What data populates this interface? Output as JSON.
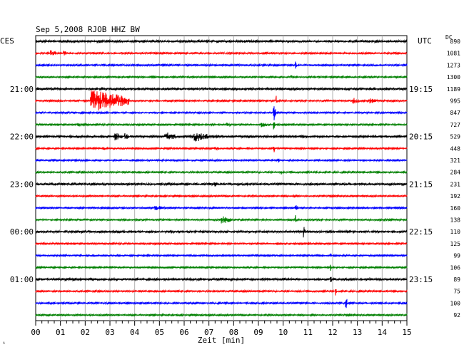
{
  "chart_data": {
    "type": "line",
    "title": "Sep 5,2008   RJOB HHZ BW",
    "left_header": "CES",
    "right_header": "UTC",
    "dc_header": "DC",
    "xlabel": "Zeit [min]",
    "xlim": [
      0,
      15
    ],
    "x_ticks": [
      "00",
      "01",
      "02",
      "03",
      "04",
      "05",
      "06",
      "07",
      "08",
      "09",
      "10",
      "11",
      "12",
      "13",
      "14",
      "15"
    ],
    "left_labels": [
      {
        "row": 4,
        "text": "21:00"
      },
      {
        "row": 8,
        "text": "22:00"
      },
      {
        "row": 12,
        "text": "23:00"
      },
      {
        "row": 16,
        "text": "00:00"
      },
      {
        "row": 20,
        "text": "01:00"
      }
    ],
    "right_labels": [
      {
        "row": 4,
        "text": "19:15"
      },
      {
        "row": 8,
        "text": "20:15"
      },
      {
        "row": 12,
        "text": "21:15"
      },
      {
        "row": 16,
        "text": "22:15"
      },
      {
        "row": 20,
        "text": "23:15"
      }
    ],
    "trace_colors": [
      "#000000",
      "#ff0000",
      "#0000ff",
      "#008000"
    ],
    "dc_values": [
      "890",
      "1081",
      "1273",
      "1300",
      "1189",
      "995",
      "847",
      "727",
      "529",
      "448",
      "321",
      "284",
      "231",
      "192",
      "160",
      "138",
      "110",
      "125",
      "99",
      "106",
      "89",
      "75",
      "100",
      "92"
    ],
    "events": [
      {
        "row": 0,
        "t": 11.3,
        "amp": 7,
        "dur": 0.05
      },
      {
        "row": 1,
        "t": 0.6,
        "amp": 5,
        "dur": 0.25
      },
      {
        "row": 1,
        "t": 1.1,
        "amp": 4,
        "dur": 0.2
      },
      {
        "row": 2,
        "t": 10.5,
        "amp": 8,
        "dur": 0.05
      },
      {
        "row": 3,
        "t": 10.3,
        "amp": 9,
        "dur": 0.05
      },
      {
        "row": 5,
        "t": 2.2,
        "amp": 16,
        "dur": 1.6
      },
      {
        "row": 5,
        "t": 9.7,
        "amp": 10,
        "dur": 0.05
      },
      {
        "row": 5,
        "t": 12.8,
        "amp": 5,
        "dur": 0.3
      },
      {
        "row": 5,
        "t": 13.5,
        "amp": 4,
        "dur": 0.3
      },
      {
        "row": 6,
        "t": 9.6,
        "amp": 14,
        "dur": 0.1
      },
      {
        "row": 7,
        "t": 1.7,
        "amp": 3,
        "dur": 0.4
      },
      {
        "row": 7,
        "t": 7.7,
        "amp": 3,
        "dur": 0.3
      },
      {
        "row": 7,
        "t": 9.1,
        "amp": 4,
        "dur": 0.3
      },
      {
        "row": 7,
        "t": 9.6,
        "amp": 10,
        "dur": 0.1
      },
      {
        "row": 8,
        "t": 3.2,
        "amp": 6,
        "dur": 0.3
      },
      {
        "row": 8,
        "t": 3.6,
        "amp": 5,
        "dur": 0.2
      },
      {
        "row": 8,
        "t": 5.2,
        "amp": 7,
        "dur": 0.5
      },
      {
        "row": 8,
        "t": 6.4,
        "amp": 8,
        "dur": 0.6
      },
      {
        "row": 8,
        "t": 9.5,
        "amp": 6,
        "dur": 0.05
      },
      {
        "row": 9,
        "t": 2.7,
        "amp": 3,
        "dur": 0.2
      },
      {
        "row": 9,
        "t": 7.2,
        "amp": 4,
        "dur": 0.2
      },
      {
        "row": 9,
        "t": 9.6,
        "amp": 12,
        "dur": 0.05
      },
      {
        "row": 10,
        "t": 9.8,
        "amp": 5,
        "dur": 0.05
      },
      {
        "row": 11,
        "t": 9.9,
        "amp": 5,
        "dur": 0.05
      },
      {
        "row": 12,
        "t": 7.2,
        "amp": 4,
        "dur": 0.2
      },
      {
        "row": 13,
        "t": 10.4,
        "amp": 5,
        "dur": 0.05
      },
      {
        "row": 14,
        "t": 4.8,
        "amp": 4,
        "dur": 0.4
      },
      {
        "row": 14,
        "t": 10.5,
        "amp": 6,
        "dur": 0.1
      },
      {
        "row": 15,
        "t": 7.5,
        "amp": 6,
        "dur": 0.4
      },
      {
        "row": 15,
        "t": 10.5,
        "amp": 9,
        "dur": 0.05
      },
      {
        "row": 16,
        "t": 10.8,
        "amp": 10,
        "dur": 0.1
      },
      {
        "row": 17,
        "t": 11.0,
        "amp": 4,
        "dur": 0.05
      },
      {
        "row": 18,
        "t": 11.9,
        "amp": 5,
        "dur": 0.05
      },
      {
        "row": 19,
        "t": 11.9,
        "amp": 6,
        "dur": 0.05
      },
      {
        "row": 20,
        "t": 11.9,
        "amp": 8,
        "dur": 0.05
      },
      {
        "row": 21,
        "t": 12.1,
        "amp": 8,
        "dur": 0.05
      },
      {
        "row": 22,
        "t": 12.5,
        "amp": 12,
        "dur": 0.1
      }
    ]
  }
}
